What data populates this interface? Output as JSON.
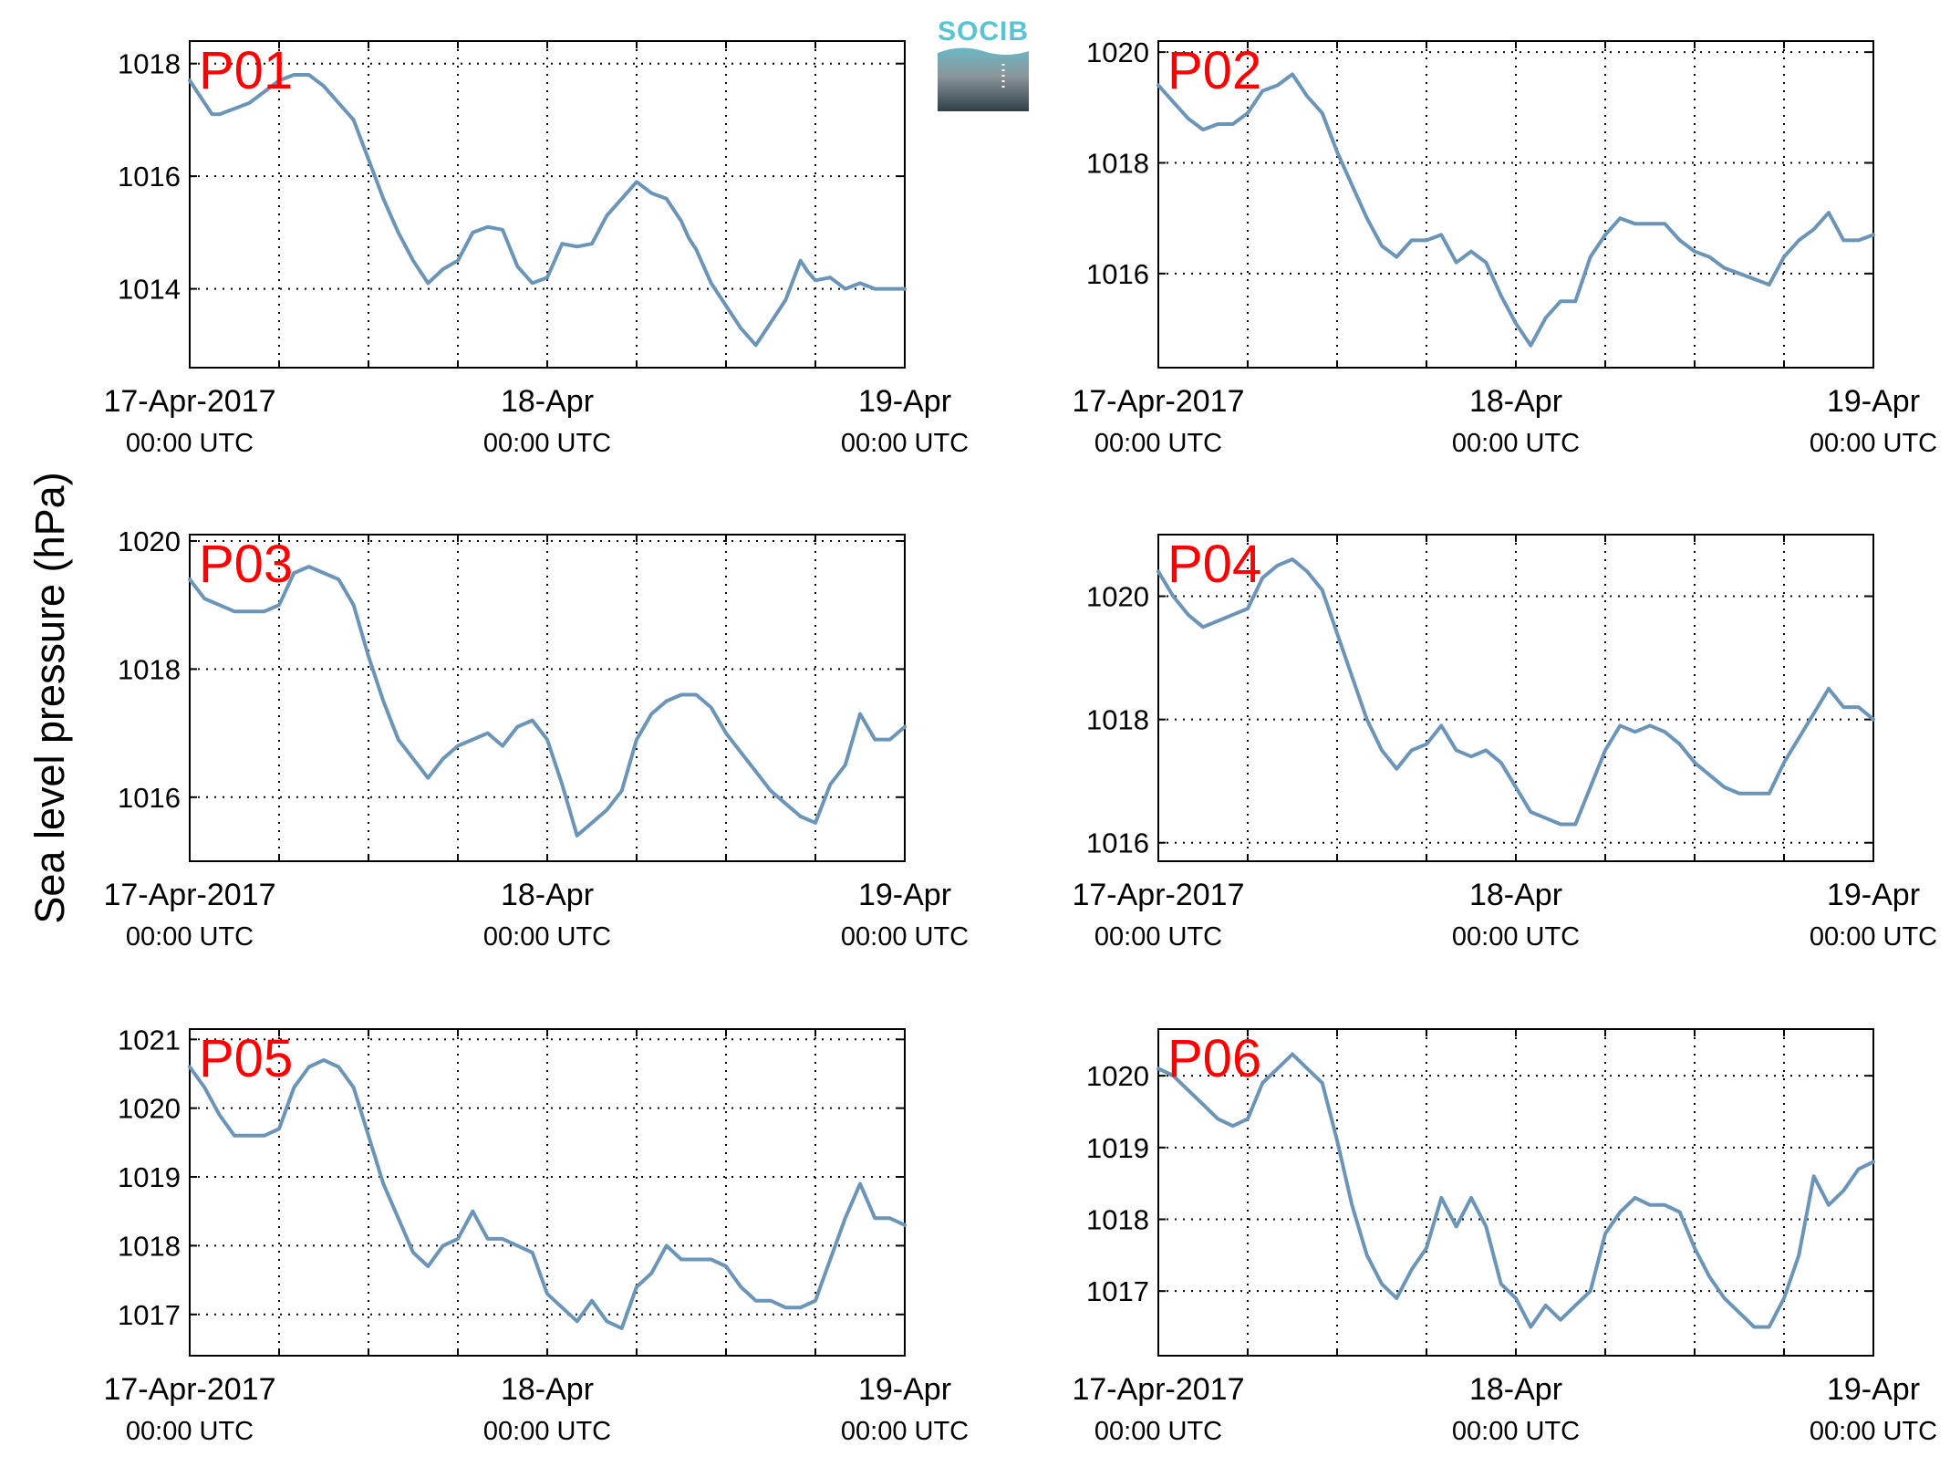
{
  "figure": {
    "ylabel": "Sea level pressure (hPa)",
    "logo_text": "SOCIB",
    "line_color": "#6b95b8",
    "label_color": "#ff0000"
  },
  "chart_data": [
    {
      "type": "line",
      "label": "P01",
      "xlim": [
        0,
        48
      ],
      "ylim": [
        1012.6,
        1018.4
      ],
      "yticks": [
        1014,
        1016,
        1018
      ],
      "xticks": [
        {
          "date": "17-Apr-2017",
          "time": "00:00 UTC"
        },
        {
          "date": "18-Apr",
          "time": "00:00 UTC"
        },
        {
          "date": "19-Apr",
          "time": "00:00 UTC"
        }
      ],
      "xlabel": "",
      "grid": true,
      "x": [
        0,
        1,
        1.5,
        2,
        3,
        4,
        5,
        6,
        7,
        8,
        8.5,
        9,
        10,
        11,
        12,
        13,
        14,
        15,
        16,
        17,
        18,
        19,
        20,
        21,
        22,
        23,
        24,
        25,
        26,
        27,
        28,
        29,
        30,
        31,
        32,
        33,
        33.5,
        34,
        35,
        36,
        37,
        38,
        39,
        40,
        41,
        41.5,
        42,
        43,
        44,
        45,
        46,
        47,
        48
      ],
      "y": [
        1017.7,
        1017.3,
        1017.1,
        1017.1,
        1017.2,
        1017.3,
        1017.5,
        1017.7,
        1017.8,
        1017.8,
        1017.7,
        1017.6,
        1017.3,
        1017.0,
        1016.3,
        1015.6,
        1015.0,
        1014.5,
        1014.1,
        1014.35,
        1014.5,
        1015.0,
        1015.1,
        1015.05,
        1014.4,
        1014.1,
        1014.2,
        1014.8,
        1014.75,
        1014.8,
        1015.3,
        1015.6,
        1015.9,
        1015.7,
        1015.6,
        1015.2,
        1014.9,
        1014.7,
        1014.1,
        1013.7,
        1013.3,
        1013.0,
        1013.4,
        1013.8,
        1014.5,
        1014.3,
        1014.15,
        1014.2,
        1014.0,
        1014.1,
        1014.0,
        1014.0,
        1014.0
      ]
    },
    {
      "type": "line",
      "label": "P02",
      "xlim": [
        0,
        48
      ],
      "ylim": [
        1014.3,
        1020.2
      ],
      "yticks": [
        1016,
        1018,
        1020
      ],
      "xticks": [
        {
          "date": "17-Apr-2017",
          "time": "00:00 UTC"
        },
        {
          "date": "18-Apr",
          "time": "00:00 UTC"
        },
        {
          "date": "19-Apr",
          "time": "00:00 UTC"
        }
      ],
      "xlabel": "",
      "grid": true,
      "x": [
        0,
        1,
        2,
        3,
        4,
        5,
        6,
        7,
        8,
        9,
        10,
        11,
        12,
        13,
        14,
        15,
        16,
        17,
        18,
        19,
        20,
        21,
        22,
        23,
        24,
        25,
        26,
        27,
        28,
        29,
        30,
        31,
        32,
        33,
        34,
        35,
        36,
        37,
        38,
        39,
        40,
        41,
        42,
        43,
        44,
        45,
        46,
        47,
        48
      ],
      "y": [
        1019.4,
        1019.1,
        1018.8,
        1018.6,
        1018.7,
        1018.7,
        1018.9,
        1019.3,
        1019.4,
        1019.6,
        1019.2,
        1018.9,
        1018.2,
        1017.6,
        1017.0,
        1016.5,
        1016.3,
        1016.6,
        1016.6,
        1016.7,
        1016.2,
        1016.4,
        1016.2,
        1015.6,
        1015.1,
        1014.7,
        1015.2,
        1015.5,
        1015.5,
        1016.3,
        1016.7,
        1017.0,
        1016.9,
        1016.9,
        1016.9,
        1016.6,
        1016.4,
        1016.3,
        1016.1,
        1016.0,
        1015.9,
        1015.8,
        1016.3,
        1016.6,
        1016.8,
        1017.1,
        1016.6,
        1016.6,
        1016.7
      ]
    },
    {
      "type": "line",
      "label": "P03",
      "xlim": [
        0,
        48
      ],
      "ylim": [
        1015.0,
        1020.1
      ],
      "yticks": [
        1016,
        1018,
        1020
      ],
      "xticks": [
        {
          "date": "17-Apr-2017",
          "time": "00:00 UTC"
        },
        {
          "date": "18-Apr",
          "time": "00:00 UTC"
        },
        {
          "date": "19-Apr",
          "time": "00:00 UTC"
        }
      ],
      "xlabel": "",
      "grid": true,
      "x": [
        0,
        1,
        2,
        3,
        4,
        5,
        6,
        7,
        8,
        9,
        10,
        11,
        12,
        13,
        14,
        15,
        16,
        17,
        18,
        19,
        20,
        21,
        22,
        23,
        24,
        25,
        26,
        27,
        28,
        29,
        30,
        31,
        32,
        33,
        34,
        35,
        36,
        37,
        38,
        39,
        40,
        41,
        42,
        43,
        44,
        45,
        46,
        47,
        48
      ],
      "y": [
        1019.4,
        1019.1,
        1019.0,
        1018.9,
        1018.9,
        1018.9,
        1019.0,
        1019.5,
        1019.6,
        1019.5,
        1019.4,
        1019.0,
        1018.2,
        1017.5,
        1016.9,
        1016.6,
        1016.3,
        1016.6,
        1016.8,
        1016.9,
        1017.0,
        1016.8,
        1017.1,
        1017.2,
        1016.9,
        1016.2,
        1015.4,
        1015.6,
        1015.8,
        1016.1,
        1016.9,
        1017.3,
        1017.5,
        1017.6,
        1017.6,
        1017.4,
        1017.0,
        1016.7,
        1016.4,
        1016.1,
        1015.9,
        1015.7,
        1015.6,
        1016.2,
        1016.5,
        1017.3,
        1016.9,
        1016.9,
        1017.1
      ]
    },
    {
      "type": "line",
      "label": "P04",
      "xlim": [
        0,
        48
      ],
      "ylim": [
        1015.7,
        1021.0
      ],
      "yticks": [
        1016,
        1018,
        1020
      ],
      "xticks": [
        {
          "date": "17-Apr-2017",
          "time": "00:00 UTC"
        },
        {
          "date": "18-Apr",
          "time": "00:00 UTC"
        },
        {
          "date": "19-Apr",
          "time": "00:00 UTC"
        }
      ],
      "xlabel": "",
      "grid": true,
      "x": [
        0,
        1,
        2,
        3,
        4,
        5,
        6,
        7,
        8,
        9,
        10,
        11,
        12,
        13,
        14,
        15,
        16,
        17,
        18,
        19,
        20,
        21,
        22,
        23,
        24,
        25,
        26,
        27,
        28,
        29,
        30,
        31,
        32,
        33,
        34,
        35,
        36,
        37,
        38,
        39,
        40,
        41,
        42,
        43,
        44,
        45,
        46,
        47,
        48
      ],
      "y": [
        1020.4,
        1020.0,
        1019.7,
        1019.5,
        1019.6,
        1019.7,
        1019.8,
        1020.3,
        1020.5,
        1020.6,
        1020.4,
        1020.1,
        1019.4,
        1018.7,
        1018.0,
        1017.5,
        1017.2,
        1017.5,
        1017.6,
        1017.9,
        1017.5,
        1017.4,
        1017.5,
        1017.3,
        1016.9,
        1016.5,
        1016.4,
        1016.3,
        1016.3,
        1016.9,
        1017.5,
        1017.9,
        1017.8,
        1017.9,
        1017.8,
        1017.6,
        1017.3,
        1017.1,
        1016.9,
        1016.8,
        1016.8,
        1016.8,
        1017.3,
        1017.7,
        1018.1,
        1018.5,
        1018.2,
        1018.2,
        1018.0
      ]
    },
    {
      "type": "line",
      "label": "P05",
      "xlim": [
        0,
        48
      ],
      "ylim": [
        1016.4,
        1021.15
      ],
      "yticks": [
        1017,
        1018,
        1019,
        1020,
        1021
      ],
      "xticks": [
        {
          "date": "17-Apr-2017",
          "time": "00:00 UTC"
        },
        {
          "date": "18-Apr",
          "time": "00:00 UTC"
        },
        {
          "date": "19-Apr",
          "time": "00:00 UTC"
        }
      ],
      "xlabel": "",
      "grid": true,
      "x": [
        0,
        1,
        2,
        3,
        4,
        5,
        6,
        7,
        8,
        9,
        10,
        11,
        12,
        13,
        14,
        15,
        16,
        17,
        18,
        19,
        20,
        21,
        22,
        23,
        24,
        25,
        26,
        27,
        28,
        29,
        30,
        31,
        32,
        33,
        34,
        35,
        36,
        37,
        38,
        39,
        40,
        41,
        42,
        43,
        44,
        45,
        46,
        47,
        48
      ],
      "y": [
        1020.6,
        1020.3,
        1019.9,
        1019.6,
        1019.6,
        1019.6,
        1019.7,
        1020.3,
        1020.6,
        1020.7,
        1020.6,
        1020.3,
        1019.6,
        1018.9,
        1018.4,
        1017.9,
        1017.7,
        1018.0,
        1018.1,
        1018.5,
        1018.1,
        1018.1,
        1018.0,
        1017.9,
        1017.3,
        1017.1,
        1016.9,
        1017.2,
        1016.9,
        1016.8,
        1017.4,
        1017.6,
        1018.0,
        1017.8,
        1017.8,
        1017.8,
        1017.7,
        1017.4,
        1017.2,
        1017.2,
        1017.1,
        1017.1,
        1017.2,
        1017.8,
        1018.4,
        1018.9,
        1018.4,
        1018.4,
        1018.3
      ]
    },
    {
      "type": "line",
      "label": "P06",
      "xlim": [
        0,
        48
      ],
      "ylim": [
        1016.1,
        1020.65
      ],
      "yticks": [
        1017,
        1018,
        1019,
        1020
      ],
      "xticks": [
        {
          "date": "17-Apr-2017",
          "time": "00:00 UTC"
        },
        {
          "date": "18-Apr",
          "time": "00:00 UTC"
        },
        {
          "date": "19-Apr",
          "time": "00:00 UTC"
        }
      ],
      "xlabel": "",
      "grid": true,
      "x": [
        0,
        1,
        2,
        3,
        4,
        5,
        6,
        7,
        8,
        9,
        10,
        11,
        12,
        13,
        14,
        15,
        16,
        17,
        18,
        19,
        20,
        21,
        22,
        23,
        24,
        25,
        26,
        27,
        28,
        29,
        30,
        31,
        32,
        33,
        34,
        35,
        36,
        37,
        38,
        39,
        40,
        41,
        42,
        43,
        44,
        45,
        46,
        47,
        48
      ],
      "y": [
        1020.1,
        1020.0,
        1019.8,
        1019.6,
        1019.4,
        1019.3,
        1019.4,
        1019.9,
        1020.1,
        1020.3,
        1020.1,
        1019.9,
        1019.1,
        1018.2,
        1017.5,
        1017.1,
        1016.9,
        1017.3,
        1017.6,
        1018.3,
        1017.9,
        1018.3,
        1017.9,
        1017.1,
        1016.9,
        1016.5,
        1016.8,
        1016.6,
        1016.8,
        1017.0,
        1017.8,
        1018.1,
        1018.3,
        1018.2,
        1018.2,
        1018.1,
        1017.6,
        1017.2,
        1016.9,
        1016.7,
        1016.5,
        1016.5,
        1016.9,
        1017.5,
        1018.6,
        1018.2,
        1018.4,
        1018.7,
        1018.8
      ]
    }
  ]
}
